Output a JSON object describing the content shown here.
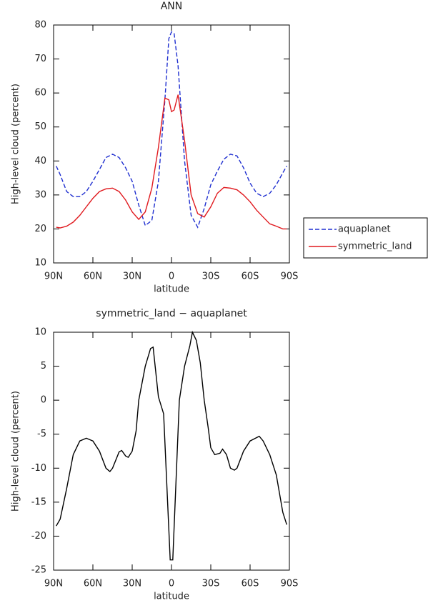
{
  "chart_data": [
    {
      "type": "line",
      "title": "ANN",
      "x_label": "latitude",
      "y_label": "High-level cloud (percent)",
      "x": [
        88,
        85,
        80,
        75,
        70,
        65,
        60,
        55,
        50,
        45,
        40,
        35,
        30,
        25,
        20,
        15,
        10,
        5,
        2,
        0,
        -2,
        -5,
        -10,
        -15,
        -20,
        -25,
        -30,
        -35,
        -40,
        -45,
        -50,
        -55,
        -60,
        -65,
        -70,
        -75,
        -80,
        -85,
        -88
      ],
      "series": [
        {
          "name": "aquaplanet",
          "color": "#1f2fd0",
          "style": "dashed",
          "values": [
            38.5,
            36,
            31,
            29.5,
            29.5,
            31,
            34,
            37.5,
            41,
            42,
            41,
            38,
            34,
            27,
            21,
            22.5,
            34,
            58,
            76,
            78,
            77.5,
            68,
            40,
            24,
            20.5,
            26,
            33,
            37,
            40.5,
            42,
            41.5,
            38,
            33.5,
            30.5,
            29.5,
            30.5,
            33,
            36.5,
            38.5
          ]
        },
        {
          "name": "symmetric_land",
          "color": "#e0191e",
          "style": "solid",
          "values": [
            20.5,
            20.3,
            20.8,
            22,
            24,
            26.5,
            29,
            31,
            31.8,
            32,
            31,
            28.5,
            25,
            22.8,
            25,
            32,
            44,
            58.5,
            58,
            54.5,
            55,
            59.5,
            46,
            30,
            24.5,
            23.5,
            26.5,
            30.5,
            32.2,
            32,
            31.5,
            30,
            28,
            25.5,
            23.5,
            21.5,
            20.8,
            20,
            20
          ]
        }
      ],
      "xlim": [
        90,
        -90
      ],
      "xticks": [
        {
          "value": 90,
          "label": "90N"
        },
        {
          "value": 60,
          "label": "60N"
        },
        {
          "value": 30,
          "label": "30N"
        },
        0,
        {
          "value": -30,
          "label": "30S"
        },
        {
          "value": -60,
          "label": "60S"
        },
        {
          "value": -90,
          "label": "90S"
        }
      ],
      "ylim": [
        10,
        80
      ],
      "yticks": [
        10,
        20,
        30,
        40,
        50,
        60,
        70,
        80
      ],
      "legend": "outside-right"
    },
    {
      "type": "line",
      "title": "symmetric_land − aquaplanet",
      "x_label": "latitude",
      "y_label": "High-level cloud (percent)",
      "x": [
        88,
        85,
        80,
        75,
        70,
        65,
        60,
        55,
        50,
        47,
        45,
        40,
        38,
        35,
        33,
        30,
        27,
        25,
        20,
        16,
        14,
        10,
        6,
        1,
        -1,
        -6,
        -10,
        -14,
        -16,
        -19,
        -22,
        -25,
        -28,
        -30,
        -33,
        -37,
        -39,
        -42,
        -45,
        -48,
        -50,
        -55,
        -60,
        -65,
        -67,
        -70,
        -75,
        -80,
        -85,
        -88
      ],
      "values": [
        -18.5,
        -17.5,
        -13,
        -8,
        -6,
        -5.6,
        -6,
        -7.5,
        -10,
        -10.5,
        -10,
        -7.6,
        -7.4,
        -8.2,
        -8.4,
        -7.5,
        -4.5,
        0,
        5,
        7.6,
        7.8,
        0.5,
        -2,
        -23.5,
        -23.5,
        0,
        5,
        8,
        10,
        8.8,
        5.5,
        0,
        -4,
        -7,
        -8,
        -7.8,
        -7.2,
        -8,
        -10,
        -10.3,
        -10,
        -7.5,
        -6,
        -5.5,
        -5.3,
        -6,
        -8,
        -11,
        -16.5,
        -18.3
      ],
      "color": "#000000",
      "xlim": [
        90,
        -90
      ],
      "xticks": [
        {
          "value": 90,
          "label": "90N"
        },
        {
          "value": 60,
          "label": "60N"
        },
        {
          "value": 30,
          "label": "30N"
        },
        0,
        {
          "value": -30,
          "label": "30S"
        },
        {
          "value": -60,
          "label": "60S"
        },
        {
          "value": -90,
          "label": "90S"
        }
      ],
      "ylim": [
        -25,
        10
      ],
      "yticks": [
        -25,
        -20,
        -15,
        -10,
        -5,
        0,
        5,
        10
      ]
    }
  ]
}
